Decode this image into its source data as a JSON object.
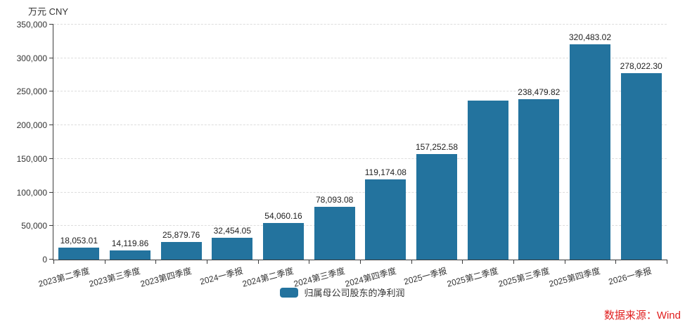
{
  "unit_label": "万元 CNY",
  "legend": {
    "label": "归属母公司股东的净利润",
    "color": "#23739E"
  },
  "source": {
    "text": "数据来源：Wind",
    "color": "#E02020"
  },
  "chart_data": {
    "type": "bar",
    "title": "",
    "series_name": "归属母公司股东的净利润",
    "unit": "万元 CNY",
    "categories": [
      "2023第二季度",
      "2023第三季度",
      "2023第四季度",
      "2024一季报",
      "2024第二季度",
      "2024第三季度",
      "2024第四季度",
      "2025一季报",
      "2025第二季度",
      "2025第三季度",
      "2025第四季度",
      "2026一季报"
    ],
    "values": [
      18053.01,
      14119.86,
      25879.76,
      32454.05,
      54060.16,
      78093.08,
      119174.08,
      157252.58,
      237000,
      238479.82,
      320483.02,
      278022.3
    ],
    "data_labels": [
      "18,053.01",
      "14,119.86",
      "25,879.76",
      "32,454.05",
      "54,060.16",
      "78,093.08",
      "119,174.08",
      "157,252.58",
      "",
      "238,479.82",
      "320,483.02",
      "278,022.30"
    ],
    "label_note": "2025第二季度 bar has no visible data label; its value is estimated from bar height",
    "y_ticks": [
      "0",
      "50,000",
      "100,000",
      "150,000",
      "200,000",
      "250,000",
      "300,000",
      "350,000"
    ],
    "ylim": [
      0,
      350000
    ],
    "xlabel": "",
    "ylabel": "万元 CNY",
    "grid": true,
    "grid_style": "dashed",
    "legend_position": "bottom",
    "bar_color": "#23739E",
    "x_label_rotation": -15
  }
}
